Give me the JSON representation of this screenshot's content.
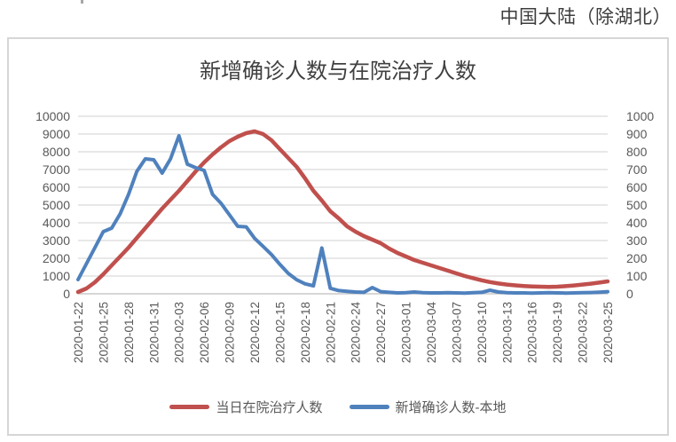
{
  "header": {
    "region_label": "中国大陆（除湖北）"
  },
  "chart_data": {
    "type": "line",
    "title": "新增确诊人数与在院治疗人数",
    "grid": true,
    "legend_position": "bottom",
    "left_axis": {
      "min": 0,
      "max": 10000,
      "step": 1000,
      "ticks": [
        0,
        1000,
        2000,
        3000,
        4000,
        5000,
        6000,
        7000,
        8000,
        9000,
        10000
      ]
    },
    "right_axis": {
      "min": 0,
      "max": 1000,
      "step": 100,
      "ticks": [
        0,
        100,
        200,
        300,
        400,
        500,
        600,
        700,
        800,
        900,
        1000
      ]
    },
    "x_tick_labels": [
      "2020-01-22",
      "2020-01-25",
      "2020-01-28",
      "2020-01-31",
      "2020-02-03",
      "2020-02-06",
      "2020-02-09",
      "2020-02-12",
      "2020-02-15",
      "2020-02-18",
      "2020-02-21",
      "2020-02-24",
      "2020-02-27",
      "2020-03-01",
      "2020-03-04",
      "2020-03-07",
      "2020-03-10",
      "2020-03-13",
      "2020-03-16",
      "2020-03-19",
      "2020-03-22",
      "2020-03-25"
    ],
    "x": [
      "2020-01-22",
      "2020-01-23",
      "2020-01-24",
      "2020-01-25",
      "2020-01-26",
      "2020-01-27",
      "2020-01-28",
      "2020-01-29",
      "2020-01-30",
      "2020-01-31",
      "2020-02-01",
      "2020-02-02",
      "2020-02-03",
      "2020-02-04",
      "2020-02-05",
      "2020-02-06",
      "2020-02-07",
      "2020-02-08",
      "2020-02-09",
      "2020-02-10",
      "2020-02-11",
      "2020-02-12",
      "2020-02-13",
      "2020-02-14",
      "2020-02-15",
      "2020-02-16",
      "2020-02-17",
      "2020-02-18",
      "2020-02-19",
      "2020-02-20",
      "2020-02-21",
      "2020-02-22",
      "2020-02-23",
      "2020-02-24",
      "2020-02-25",
      "2020-02-26",
      "2020-02-27",
      "2020-02-28",
      "2020-02-29",
      "2020-03-01",
      "2020-03-02",
      "2020-03-03",
      "2020-03-04",
      "2020-03-05",
      "2020-03-06",
      "2020-03-07",
      "2020-03-08",
      "2020-03-09",
      "2020-03-10",
      "2020-03-11",
      "2020-03-12",
      "2020-03-13",
      "2020-03-14",
      "2020-03-15",
      "2020-03-16",
      "2020-03-17",
      "2020-03-18",
      "2020-03-19",
      "2020-03-20",
      "2020-03-21",
      "2020-03-22",
      "2020-03-23",
      "2020-03-24",
      "2020-03-25"
    ],
    "series": [
      {
        "name": "当日在院治疗人数",
        "axis": "left",
        "color": "#C0504D",
        "stroke_width": 4.5,
        "values": [
          100,
          300,
          650,
          1100,
          1600,
          2100,
          2600,
          3150,
          3700,
          4250,
          4800,
          5300,
          5800,
          6350,
          6900,
          7400,
          7850,
          8250,
          8600,
          8850,
          9050,
          9150,
          9000,
          8650,
          8150,
          7650,
          7150,
          6500,
          5800,
          5250,
          4650,
          4250,
          3800,
          3500,
          3250,
          3050,
          2850,
          2550,
          2300,
          2100,
          1900,
          1750,
          1600,
          1450,
          1300,
          1150,
          1000,
          880,
          760,
          660,
          580,
          520,
          475,
          440,
          415,
          400,
          390,
          400,
          430,
          470,
          520,
          570,
          630,
          700
        ]
      },
      {
        "name": "新增确诊人数-本地",
        "axis": "right",
        "color": "#4F81BD",
        "stroke_width": 4,
        "values": [
          80,
          170,
          260,
          350,
          370,
          450,
          560,
          690,
          760,
          755,
          680,
          760,
          890,
          730,
          710,
          695,
          560,
          510,
          445,
          380,
          377,
          312,
          267,
          221,
          166,
          115,
          79,
          56,
          45,
          258,
          31,
          18,
          14,
          10,
          8,
          35,
          12,
          8,
          5,
          6,
          10,
          6,
          5,
          5,
          6,
          5,
          4,
          6,
          8,
          20,
          10,
          6,
          5,
          5,
          4,
          5,
          6,
          5,
          4,
          5,
          6,
          7,
          9,
          12
        ]
      }
    ],
    "style": {
      "grid_color": "#d9d9d9",
      "axis_line_color": "#bfbfbf",
      "tick_label_color": "#595959"
    }
  }
}
